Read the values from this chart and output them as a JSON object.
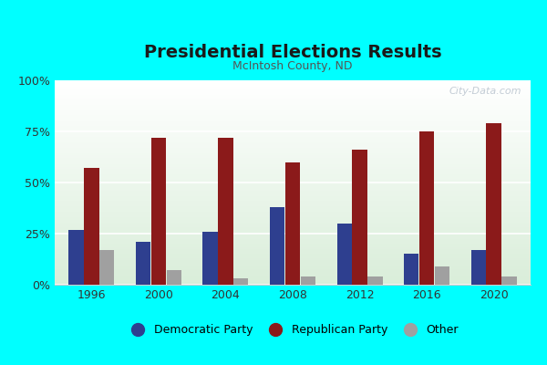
{
  "title": "Presidential Elections Results",
  "subtitle": "McIntosh County, ND",
  "years": [
    1996,
    2000,
    2004,
    2008,
    2012,
    2016,
    2020
  ],
  "democratic": [
    27,
    21,
    26,
    38,
    30,
    15,
    17
  ],
  "republican": [
    57,
    72,
    72,
    60,
    66,
    75,
    79
  ],
  "other": [
    17,
    7,
    3,
    4,
    4,
    9,
    4
  ],
  "dem_color": "#2e3f8f",
  "rep_color": "#8b1a1a",
  "other_color": "#a0a0a0",
  "background_outer": "#00ffff",
  "yticks": [
    0,
    25,
    50,
    75,
    100
  ],
  "ytick_labels": [
    "0%",
    "25%",
    "50%",
    "75%",
    "100%"
  ],
  "title_fontsize": 14,
  "subtitle_fontsize": 9,
  "watermark": "City-Data.com"
}
